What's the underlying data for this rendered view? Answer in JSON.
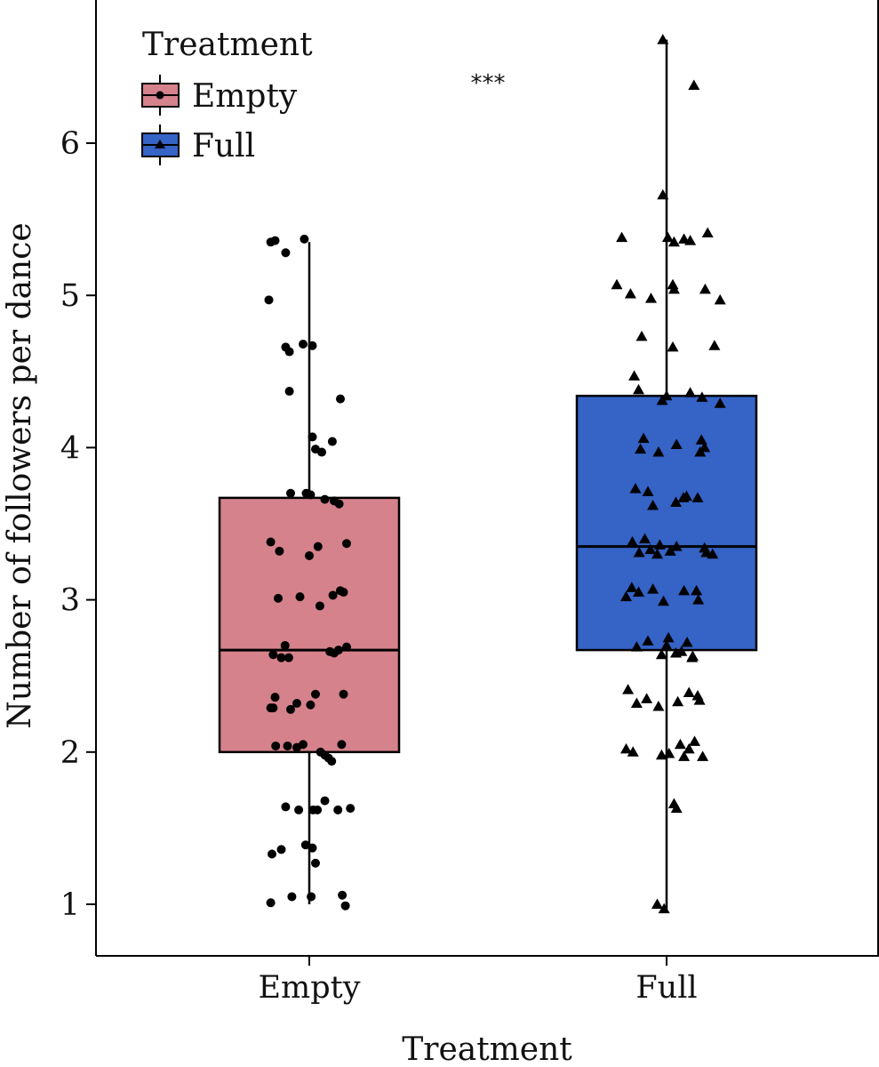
{
  "chart_data": {
    "type": "boxplot",
    "xlabel": "Treatment",
    "ylabel": "Number of followers per dance",
    "categories": [
      "Empty",
      "Full"
    ],
    "yticks": [
      "1",
      "2",
      "3",
      "4",
      "5",
      "6"
    ],
    "ytick_values": [
      1,
      2,
      3,
      4,
      5,
      6
    ],
    "significance": "***",
    "legend": {
      "title": "Treatment",
      "placement": "top-left",
      "entries": [
        {
          "label": "Empty",
          "color": "#d5828c",
          "marker": "circle"
        },
        {
          "label": "Full",
          "color": "#3563c6",
          "marker": "triangle"
        }
      ]
    },
    "series": [
      {
        "name": "Empty",
        "color": "#d5828c",
        "marker": "circle",
        "box": {
          "whisker_low": 1.0,
          "q1": 2.0,
          "median": 2.67,
          "q3": 3.67,
          "whisker_high": 5.35
        },
        "points": [
          5.35,
          5.36,
          5.28,
          5.37,
          4.97,
          4.66,
          4.63,
          4.68,
          4.67,
          4.37,
          4.32,
          4.07,
          4.04,
          3.97,
          3.99,
          3.7,
          3.7,
          3.69,
          3.66,
          3.65,
          3.63,
          3.38,
          3.32,
          3.29,
          3.35,
          3.37,
          3.06,
          3.05,
          3.01,
          3.02,
          3.03,
          2.96,
          2.7,
          2.64,
          2.62,
          2.62,
          2.66,
          2.65,
          2.67,
          2.69,
          2.36,
          2.32,
          2.38,
          2.38,
          2.31,
          2.29,
          2.29,
          2.28,
          2.04,
          2.04,
          2.03,
          2.05,
          2.05,
          2.0,
          1.98,
          1.96,
          1.94,
          1.64,
          1.62,
          1.62,
          1.62,
          1.68,
          1.62,
          1.63,
          1.39,
          1.37,
          1.33,
          1.36,
          1.27,
          1.05,
          1.05,
          1.06,
          1.01,
          0.99
        ],
        "jitter": [
          -0.62,
          -0.55,
          -0.38,
          -0.08,
          -0.65,
          -0.38,
          -0.32,
          -0.1,
          0.05,
          -0.32,
          0.5,
          0.05,
          0.37,
          0.2,
          0.1,
          -0.3,
          -0.05,
          0.02,
          0.25,
          0.4,
          0.48,
          -0.62,
          -0.48,
          0,
          0.14,
          0.6,
          0.5,
          0.55,
          -0.5,
          -0.15,
          0.38,
          0.17,
          -0.39,
          -0.58,
          -0.45,
          -0.33,
          0.33,
          0.4,
          0.47,
          0.6,
          -0.55,
          -0.2,
          0.1,
          0.55,
          0.02,
          -0.62,
          -0.58,
          -0.3,
          -0.54,
          -0.35,
          -0.2,
          -0.1,
          0.52,
          0.18,
          0.25,
          0.31,
          0.36,
          -0.38,
          -0.17,
          0.06,
          0.13,
          0.25,
          0.46,
          0.66,
          -0.06,
          0.05,
          -0.6,
          -0.45,
          0.1,
          -0.28,
          0.03,
          0.53,
          -0.62,
          0.58
        ]
      },
      {
        "name": "Full",
        "color": "#3563c6",
        "marker": "triangle",
        "box": {
          "whisker_low": 0.97,
          "q1": 2.67,
          "median": 3.35,
          "q3": 4.34,
          "whisker_high": 6.68
        },
        "points": [
          6.68,
          6.38,
          5.66,
          5.41,
          5.38,
          5.38,
          5.37,
          5.36,
          5.35,
          5.07,
          5.07,
          5.04,
          5.04,
          5.01,
          4.98,
          4.97,
          4.73,
          4.67,
          4.66,
          4.47,
          4.38,
          4.36,
          4.34,
          4.33,
          4.31,
          4.29,
          4.06,
          4.05,
          4.02,
          4.0,
          3.99,
          3.97,
          3.97,
          3.73,
          3.71,
          3.68,
          3.67,
          3.67,
          3.64,
          3.62,
          3.4,
          3.38,
          3.36,
          3.35,
          3.34,
          3.33,
          3.32,
          3.31,
          3.31,
          3.3,
          3.3,
          3.08,
          3.07,
          3.06,
          3.06,
          3.05,
          3.02,
          3.0,
          2.99,
          2.75,
          2.73,
          2.72,
          2.7,
          2.69,
          2.66,
          2.65,
          2.64,
          2.63,
          2.62,
          2.41,
          2.39,
          2.37,
          2.35,
          2.34,
          2.33,
          2.32,
          2.3,
          2.07,
          2.05,
          2.02,
          2.02,
          2.0,
          1.99,
          1.98,
          1.97,
          1.97,
          1.66,
          1.63,
          1.0,
          0.97
        ],
        "jitter": [
          -0.06,
          0.44,
          -0.06,
          0.66,
          -0.72,
          0.02,
          0.28,
          0.38,
          0.12,
          -0.8,
          0.1,
          0.12,
          0.62,
          -0.58,
          -0.25,
          0.86,
          -0.4,
          0.77,
          0.1,
          -0.52,
          -0.45,
          0.38,
          0,
          0.57,
          -0.07,
          0.86,
          -0.37,
          0.56,
          0.16,
          0.61,
          -0.42,
          0.54,
          -0.13,
          -0.5,
          -0.3,
          0.32,
          0.27,
          0.5,
          0.15,
          -0.22,
          -0.35,
          -0.55,
          -0.11,
          0.16,
          0.61,
          -0.26,
          0.06,
          -0.44,
          0.64,
          -0.15,
          0.74,
          -0.56,
          -0.22,
          0.28,
          0.48,
          -0.45,
          -0.65,
          0.51,
          -0.05,
          0.03,
          -0.3,
          0.33,
          0,
          -0.48,
          0.24,
          0.15,
          -0.08,
          0.42,
          0.41,
          -0.62,
          0.36,
          0.5,
          -0.32,
          0.53,
          0.18,
          -0.48,
          -0.13,
          0.45,
          0.22,
          0.36,
          -0.65,
          -0.54,
          0.04,
          -0.08,
          0.58,
          0.28,
          0.12,
          0.16,
          -0.15,
          -0.04
        ]
      }
    ]
  }
}
